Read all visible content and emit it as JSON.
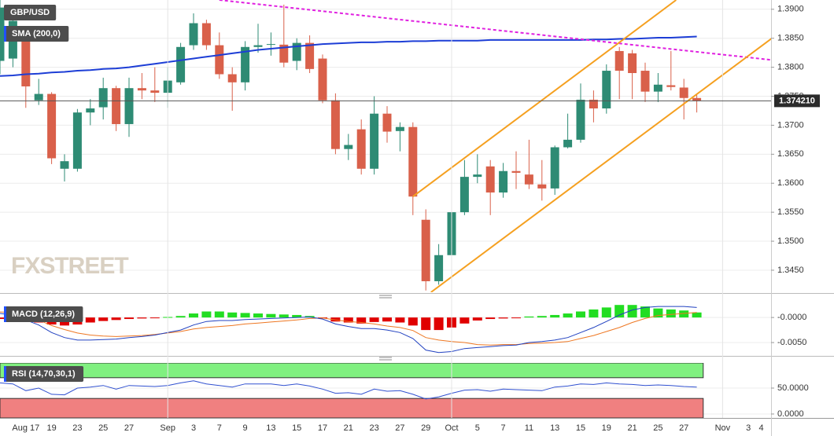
{
  "chart_data": [
    {
      "type": "candlestick",
      "title": "GBP/USD",
      "categories": [
        null,
        null,
        "Aug 17",
        null,
        "19",
        null,
        "23",
        null,
        "25",
        null,
        "27",
        null,
        null,
        "Sep",
        null,
        "3",
        null,
        "7",
        null,
        "9",
        null,
        "13",
        null,
        "15",
        null,
        "17",
        null,
        "21",
        null,
        "23",
        null,
        "27",
        null,
        "29",
        null,
        "Oct",
        null,
        "5",
        null,
        "7",
        null,
        "11",
        null,
        "13",
        null,
        "15",
        null,
        "19",
        null,
        "21",
        null,
        "25",
        null,
        "27",
        null,
        null,
        "Nov",
        null,
        "3",
        "4"
      ],
      "open": [
        1.3811,
        1.3815,
        1.3862,
        1.3743,
        1.3754,
        1.3625,
        1.3625,
        1.3722,
        1.3731,
        1.3764,
        1.3702,
        1.3764,
        1.376,
        1.3756,
        1.3774,
        1.3838,
        1.3876,
        1.3838,
        1.3788,
        1.3774,
        1.3835,
        1.3839,
        1.3839,
        1.3811,
        1.3842,
        1.3815,
        1.3743,
        1.3659,
        1.3693,
        1.3625,
        1.372,
        1.369,
        1.3697,
        1.3537,
        1.3431,
        1.3476,
        1.355,
        1.3611,
        1.3629,
        1.3584,
        1.3621,
        1.3615,
        1.3598,
        1.3591,
        1.3662,
        1.3675,
        1.3744,
        1.3729,
        1.3828,
        1.3824,
        1.3794,
        1.3758,
        1.3769,
        1.3765,
        1.3747,
        null,
        null,
        null,
        null,
        null
      ],
      "high": [
        1.3916,
        1.3895,
        1.387,
        1.378,
        1.3757,
        1.365,
        1.3728,
        1.3745,
        1.3782,
        1.3768,
        1.3782,
        1.379,
        1.38,
        1.38,
        1.3842,
        1.3893,
        1.3882,
        1.386,
        1.38,
        1.3845,
        1.3875,
        1.386,
        1.3908,
        1.385,
        1.3855,
        1.3822,
        1.3755,
        1.3685,
        1.371,
        1.375,
        1.3733,
        1.3705,
        1.3705,
        1.3555,
        1.3495,
        1.356,
        1.364,
        1.365,
        1.364,
        1.3635,
        1.3655,
        1.3675,
        1.364,
        1.3665,
        1.372,
        1.3772,
        1.376,
        1.3805,
        1.3835,
        1.383,
        1.3808,
        1.379,
        1.3828,
        1.378,
        1.3752,
        null,
        null,
        null,
        null,
        null
      ],
      "low": [
        1.3788,
        1.38,
        1.373,
        1.3735,
        1.3633,
        1.3603,
        1.362,
        1.37,
        1.371,
        1.369,
        1.368,
        1.3745,
        1.374,
        1.373,
        1.377,
        1.383,
        1.383,
        1.378,
        1.3725,
        1.376,
        1.3825,
        1.382,
        1.38,
        1.3795,
        1.379,
        1.3738,
        1.365,
        1.364,
        1.3615,
        1.3615,
        1.367,
        1.3655,
        1.3545,
        1.3415,
        1.3425,
        1.344,
        1.3545,
        1.36,
        1.3545,
        1.3575,
        1.359,
        1.359,
        1.357,
        1.358,
        1.366,
        1.367,
        1.3705,
        1.372,
        1.3745,
        1.3745,
        1.374,
        1.374,
        1.376,
        1.371,
        1.3722,
        null,
        null,
        null,
        null,
        null
      ],
      "close": [
        1.3903,
        1.388,
        1.3767,
        1.3754,
        1.3643,
        1.3638,
        1.3722,
        1.3729,
        1.3764,
        1.3702,
        1.3764,
        1.376,
        1.3756,
        1.3777,
        1.3835,
        1.3876,
        1.3838,
        1.3788,
        1.3774,
        1.3835,
        1.3838,
        1.384,
        1.3808,
        1.3842,
        1.3797,
        1.3743,
        1.3659,
        1.3666,
        1.3625,
        1.372,
        1.3689,
        1.3697,
        1.3577,
        1.3431,
        1.3476,
        1.355,
        1.3611,
        1.3615,
        1.3584,
        1.3621,
        1.3618,
        1.3598,
        1.3591,
        1.3662,
        1.3675,
        1.3744,
        1.3729,
        1.3794,
        1.3794,
        1.379,
        1.3758,
        1.377,
        1.3766,
        1.3747,
        1.3742,
        null,
        null,
        null,
        null,
        null
      ],
      "up_color": "#2e8b74",
      "down_color": "#d9604a",
      "sma": {
        "label": "SMA (200,0)",
        "color": "#1d3ed6",
        "values": [
          1.3785,
          1.3786,
          1.3788,
          1.3789,
          1.3791,
          1.3792,
          1.3794,
          1.3795,
          1.3797,
          1.3798,
          1.38,
          1.3803,
          1.3806,
          1.3809,
          1.3812,
          1.3815,
          1.3818,
          1.3821,
          1.3824,
          1.3827,
          1.383,
          1.3832,
          1.3834,
          1.3836,
          1.3838,
          1.384,
          1.3841,
          1.3842,
          1.3843,
          1.3843,
          1.3844,
          1.3844,
          1.3845,
          1.3845,
          1.3846,
          1.3846,
          1.3846,
          1.3846,
          1.3847,
          1.3847,
          1.3847,
          1.3847,
          1.3847,
          1.3847,
          1.3847,
          1.3847,
          1.3848,
          1.3848,
          1.3849,
          1.3849,
          1.385,
          1.3851,
          1.3851,
          1.3852,
          1.3853,
          null,
          null,
          null,
          null,
          null
        ]
      },
      "trendlines": [
        {
          "color": "#e020e0",
          "dashed": true,
          "x": [
            17,
            60.06
          ],
          "y": [
            1.3916,
            1.3812
          ]
        },
        {
          "color": "#f5a020",
          "dashed": false,
          "x": [
            32,
            52.4
          ],
          "y": [
            1.3577,
            1.3916
          ]
        },
        {
          "color": "#f5a020",
          "dashed": false,
          "x": [
            33.4,
            60.06
          ],
          "y": [
            1.3412,
            1.3854
          ]
        }
      ],
      "last_price": {
        "value": 1.37421,
        "label": "1.374210"
      },
      "watermark": "FXSTREET",
      "ylim": [
        1.3412,
        1.3916
      ],
      "yticks": [
        {
          "value": 1.39,
          "label": "1.3900"
        },
        {
          "value": 1.385,
          "label": "1.3850"
        },
        {
          "value": 1.38,
          "label": "1.3800"
        },
        {
          "value": 1.375,
          "label": "1.3750"
        },
        {
          "value": 1.37,
          "label": "1.3700"
        },
        {
          "value": 1.365,
          "label": "1.3650"
        },
        {
          "value": 1.36,
          "label": "1.3600"
        },
        {
          "value": 1.355,
          "label": "1.3550"
        },
        {
          "value": 1.35,
          "label": "1.3500"
        },
        {
          "value": 1.345,
          "label": "1.3450"
        }
      ],
      "grid": true
    },
    {
      "type": "macd",
      "title": "MACD (12,26,9)",
      "histogram": [
        -0.0003,
        -0.0005,
        -0.0008,
        -0.001,
        -0.0014,
        -0.0016,
        -0.0014,
        -0.001,
        -0.0007,
        -0.0005,
        -0.0003,
        -0.0002,
        -0.0001,
        0.0001,
        0.0003,
        0.0008,
        0.0012,
        0.0012,
        0.001,
        0.0009,
        0.0008,
        0.0007,
        0.0006,
        0.0005,
        0.0003,
        -0.0002,
        -0.0008,
        -0.001,
        -0.0012,
        -0.0009,
        -0.0008,
        -0.001,
        -0.0016,
        -0.0025,
        -0.0025,
        -0.002,
        -0.0012,
        -0.0006,
        -0.0003,
        -0.0002,
        -0.0001,
        0.0002,
        0.0003,
        0.0005,
        0.0008,
        0.0012,
        0.0016,
        0.002,
        0.0025,
        0.0025,
        0.0022,
        0.0018,
        0.0016,
        0.0014,
        0.001,
        null,
        null,
        null,
        null,
        null
      ],
      "up_color": "#22dd22",
      "down_color": "#e00000",
      "macd": [
        0.0008,
        0.0005,
        -0.0005,
        -0.0015,
        -0.003,
        -0.004,
        -0.0045,
        -0.0045,
        -0.0044,
        -0.0043,
        -0.004,
        -0.0038,
        -0.0035,
        -0.003,
        -0.0025,
        -0.0015,
        -0.0008,
        -0.0006,
        -0.0006,
        -0.0004,
        -0.0003,
        -0.0002,
        -0.0001,
        0.0,
        0.0001,
        -0.0003,
        -0.0013,
        -0.0018,
        -0.0022,
        -0.0022,
        -0.0025,
        -0.003,
        -0.0042,
        -0.0065,
        -0.007,
        -0.0068,
        -0.0062,
        -0.006,
        -0.0058,
        -0.0056,
        -0.0055,
        -0.005,
        -0.0048,
        -0.0045,
        -0.004,
        -0.003,
        -0.002,
        -0.0008,
        0.0005,
        0.0015,
        0.002,
        0.0022,
        0.0022,
        0.0022,
        0.002,
        null,
        null,
        null,
        null,
        null
      ],
      "macd_color": "#2040c0",
      "signal": [
        0.0011,
        0.001,
        0.0003,
        -0.0005,
        -0.0016,
        -0.0024,
        -0.0031,
        -0.0035,
        -0.0037,
        -0.0038,
        -0.0037,
        -0.0036,
        -0.0034,
        -0.0031,
        -0.0028,
        -0.0023,
        -0.002,
        -0.0018,
        -0.0016,
        -0.0013,
        -0.0011,
        -0.0009,
        -0.0007,
        -0.0005,
        -0.0002,
        -0.0001,
        -0.0005,
        -0.0008,
        -0.001,
        -0.0013,
        -0.0017,
        -0.002,
        -0.0026,
        -0.004,
        -0.0045,
        -0.0048,
        -0.005,
        -0.0054,
        -0.0055,
        -0.0054,
        -0.0054,
        -0.0052,
        -0.0051,
        -0.005,
        -0.0048,
        -0.0042,
        -0.0036,
        -0.0028,
        -0.002,
        -0.001,
        -0.0002,
        0.0004,
        0.0006,
        0.0008,
        0.001,
        null,
        null,
        null,
        null,
        null
      ],
      "signal_color": "#ee7722",
      "ylim": [
        -0.0075,
        0.003
      ],
      "yticks": [
        {
          "value": 0,
          "label": "-0.0000"
        },
        {
          "value": -0.005,
          "label": "-0.0050"
        }
      ],
      "grid": true
    },
    {
      "type": "rsi",
      "title": "RSI (14,70,30,1)",
      "values": [
        60,
        58,
        45,
        50,
        38,
        37,
        50,
        52,
        55,
        48,
        55,
        54,
        53,
        55,
        60,
        64,
        58,
        55,
        52,
        58,
        58,
        58,
        55,
        58,
        54,
        48,
        40,
        41,
        38,
        48,
        44,
        45,
        38,
        29,
        33,
        40,
        46,
        47,
        44,
        48,
        47,
        46,
        45,
        52,
        54,
        58,
        57,
        60,
        58,
        57,
        55,
        56,
        55,
        53,
        52,
        null,
        null,
        null,
        null,
        null
      ],
      "color": "#3050d0",
      "overbought": 70,
      "oversold": 30,
      "overbought_color": "#80f080",
      "oversold_color": "#f08080",
      "ylim": [
        -7.6,
        98.5
      ],
      "yticks": [
        {
          "value": 50,
          "label": "50.0000"
        },
        {
          "value": 0,
          "label": "0.0000"
        }
      ],
      "grid": true
    }
  ]
}
